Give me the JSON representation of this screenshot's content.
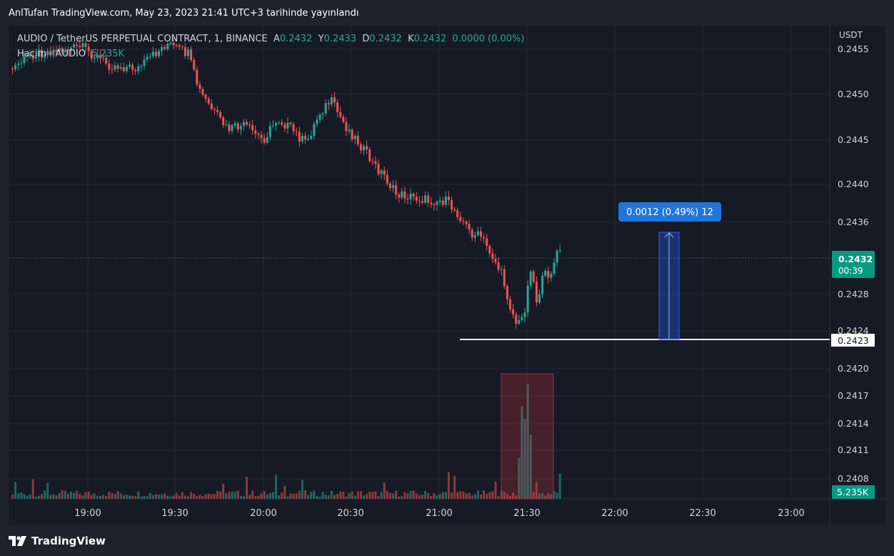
{
  "header": {
    "published_text": "AnlTufan TradingView.com, May 23, 2023 21:41 UTC+3 tarihinde yayınlandı"
  },
  "legend": {
    "symbol": "AUDIO / TetherUS PERPETUAL CONTRACT, 1, BINANCE",
    "open_label": "A",
    "open_value": "0.2432",
    "high_label": "Y",
    "high_value": "0.2433",
    "low_label": "D",
    "low_value": "0.2432",
    "close_label": "K",
    "close_value": "0.2432",
    "change": "0.0000 (0.00%)",
    "volume_label": "Hacim · AUDIO",
    "volume_value": "5.235K"
  },
  "price_axis": {
    "unit": "USDT",
    "ticks": [
      "0.2455",
      "0.2450",
      "0.2445",
      "0.2440",
      "0.2436",
      "0.2428",
      "0.2424",
      "0.2420",
      "0.2417",
      "0.2414",
      "0.2411",
      "0.2408"
    ],
    "current_price_label": "0.2432",
    "countdown": "00:39",
    "support_label": "0.2423",
    "volume_badge": "5.235K"
  },
  "time_axis": {
    "ticks": [
      "19:00",
      "19:30",
      "20:00",
      "20:30",
      "21:00",
      "21:30",
      "22:00",
      "22:30",
      "23:00"
    ]
  },
  "measure": {
    "label": "0.0012 (0.49%) 12"
  },
  "colors": {
    "background": "#161a25",
    "up": "#26a69a",
    "down": "#ef5350",
    "measure_blue": "#2962ff",
    "grid": "#242833"
  },
  "footer": {
    "logo_icon": "tradingview-logo-icon",
    "brand": "TradingView"
  }
}
